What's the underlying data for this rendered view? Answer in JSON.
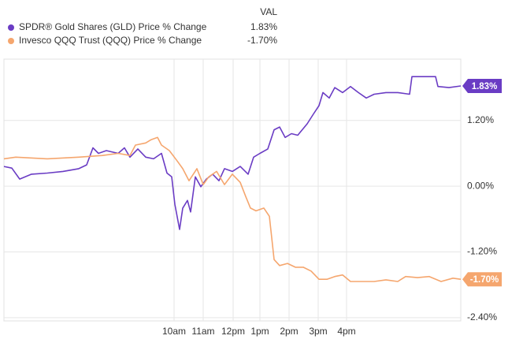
{
  "chart_data": {
    "type": "line",
    "legend_header": "VAL",
    "xlim": [
      0,
      116
    ],
    "xticks": [
      {
        "value": 43.2,
        "label": "10am"
      },
      {
        "value": 50.6,
        "label": "11am"
      },
      {
        "value": 58.2,
        "label": "12pm"
      },
      {
        "value": 65,
        "label": "1pm"
      },
      {
        "value": 72.4,
        "label": "2pm"
      },
      {
        "value": 79.8,
        "label": "3pm"
      },
      {
        "value": 87,
        "label": "4pm"
      }
    ],
    "ylim": [
      -2.46,
      2.32
    ],
    "yticks": [
      {
        "value": 1.2,
        "label": "1.20%"
      },
      {
        "value": 0,
        "label": "0.00%"
      },
      {
        "value": -1.2,
        "label": "-1.20%"
      },
      {
        "value": -2.4,
        "label": "-2.40%"
      }
    ],
    "grid": true,
    "series": [
      {
        "name": "SPDR® Gold Shares (GLD) Price % Change",
        "color": "#6a3cc4",
        "legend_value": "1.83%",
        "x": [
          0,
          2,
          4,
          7,
          11,
          15,
          19,
          21,
          22.6,
          24,
          26,
          29,
          30.6,
          32,
          34,
          36,
          38,
          40,
          41.4,
          42.6,
          43.4,
          44.6,
          45.4,
          46.6,
          47.4,
          48.6,
          50,
          51.4,
          53,
          54.6,
          56,
          58,
          60,
          62,
          63.4,
          65,
          67,
          68.6,
          70,
          71.4,
          73,
          74.6,
          77,
          78.6,
          80,
          81,
          82.6,
          84,
          86,
          88,
          90,
          92,
          94,
          97,
          100,
          103,
          103.6,
          109.6,
          110.2,
          113,
          116
        ],
        "values": [
          0.36,
          0.33,
          0.13,
          0.22,
          0.24,
          0.27,
          0.32,
          0.39,
          0.7,
          0.6,
          0.65,
          0.6,
          0.7,
          0.53,
          0.68,
          0.53,
          0.5,
          0.6,
          0.24,
          0.17,
          -0.33,
          -0.79,
          -0.4,
          -0.26,
          -0.47,
          0.17,
          -0.01,
          0.13,
          0.22,
          0.1,
          0.32,
          0.27,
          0.36,
          0.22,
          0.53,
          0.6,
          0.68,
          1.03,
          1.08,
          0.89,
          0.96,
          0.93,
          1.14,
          1.32,
          1.47,
          1.71,
          1.61,
          1.8,
          1.71,
          1.82,
          1.71,
          1.61,
          1.68,
          1.71,
          1.71,
          1.68,
          2.0,
          2.0,
          1.82,
          1.8,
          1.83
        ]
      },
      {
        "name": "Invesco QQQ Trust (QQQ) Price % Change",
        "color": "#f5a66e",
        "legend_value": "-1.70%",
        "x": [
          0,
          3,
          11,
          19,
          25,
          29,
          32,
          33.4,
          36,
          37.4,
          39,
          40,
          42,
          44,
          45.4,
          47,
          49,
          50.6,
          52,
          54,
          56,
          58,
          60,
          61.4,
          62.6,
          64,
          66,
          67.4,
          68.6,
          70,
          72,
          74,
          76,
          78,
          80,
          82,
          84,
          86,
          88,
          91,
          94,
          97,
          100,
          102,
          105,
          108,
          111,
          114,
          116
        ],
        "values": [
          0.5,
          0.53,
          0.5,
          0.53,
          0.56,
          0.6,
          0.56,
          0.75,
          0.79,
          0.85,
          0.89,
          0.75,
          0.65,
          0.46,
          0.32,
          0.1,
          0.32,
          0.03,
          0.17,
          0.27,
          0.03,
          0.22,
          0.07,
          -0.19,
          -0.4,
          -0.45,
          -0.4,
          -0.55,
          -1.34,
          -1.45,
          -1.41,
          -1.48,
          -1.48,
          -1.55,
          -1.7,
          -1.7,
          -1.65,
          -1.62,
          -1.74,
          -1.74,
          -1.74,
          -1.71,
          -1.74,
          -1.65,
          -1.67,
          -1.65,
          -1.74,
          -1.68,
          -1.7
        ]
      }
    ]
  }
}
